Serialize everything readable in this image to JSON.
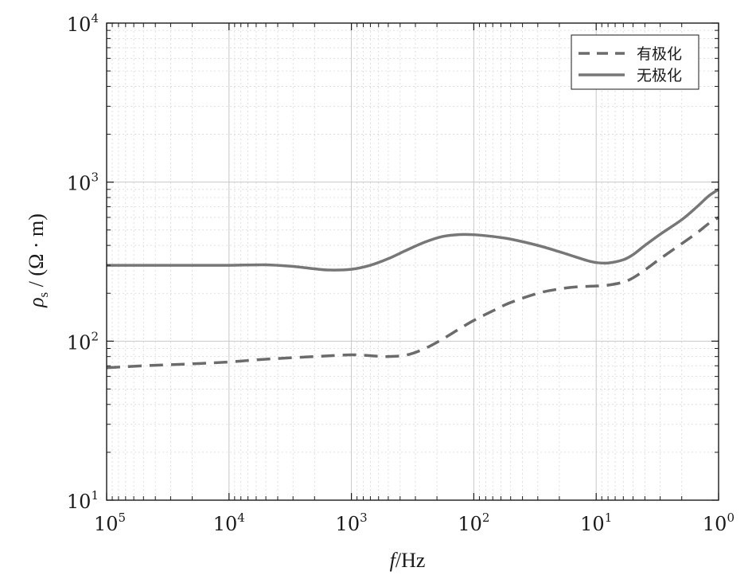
{
  "chart_data": {
    "type": "line",
    "x_scale": "log",
    "y_scale": "log",
    "x_reversed": true,
    "xlim": [
      100000,
      1
    ],
    "ylim": [
      10,
      10000
    ],
    "grid": true,
    "legend_position": "top-right",
    "xlabel_italic": "f",
    "xlabel_unit": "/Hz",
    "ylabel_symbol": "ρ",
    "ylabel_subscript": "s",
    "ylabel_unit": " / (Ω · m)",
    "x_ticks": [
      {
        "base": "10",
        "exp": "5",
        "value": 100000
      },
      {
        "base": "10",
        "exp": "4",
        "value": 10000
      },
      {
        "base": "10",
        "exp": "3",
        "value": 1000
      },
      {
        "base": "10",
        "exp": "2",
        "value": 100
      },
      {
        "base": "10",
        "exp": "1",
        "value": 10
      },
      {
        "base": "10",
        "exp": "0",
        "value": 1
      }
    ],
    "y_ticks": [
      {
        "base": "10",
        "exp": "1",
        "value": 10
      },
      {
        "base": "10",
        "exp": "2",
        "value": 100
      },
      {
        "base": "10",
        "exp": "3",
        "value": 1000
      },
      {
        "base": "10",
        "exp": "4",
        "value": 10000
      }
    ],
    "series": [
      {
        "name": "有极化",
        "style": "dashed",
        "color": "#6b6b6b",
        "x": [
          100000,
          50000,
          20000,
          10000,
          5000,
          2000,
          1000,
          700,
          500,
          350,
          250,
          180,
          130,
          100,
          70,
          50,
          30,
          20,
          15,
          12,
          10,
          8,
          6,
          5,
          4,
          3,
          2,
          1.5,
          1.2,
          1
        ],
        "y": [
          68,
          70,
          72,
          74,
          77,
          80,
          82,
          81,
          80,
          82,
          90,
          103,
          120,
          135,
          155,
          175,
          200,
          213,
          219,
          221,
          222,
          225,
          235,
          250,
          280,
          330,
          410,
          480,
          550,
          600
        ]
      },
      {
        "name": "无极化",
        "style": "solid",
        "color": "#777777",
        "x": [
          100000,
          50000,
          20000,
          10000,
          5000,
          3000,
          2000,
          1500,
          1000,
          700,
          500,
          350,
          250,
          180,
          130,
          100,
          70,
          50,
          30,
          20,
          15,
          12,
          10,
          8,
          6,
          5,
          4,
          3,
          2,
          1.5,
          1.2,
          1
        ],
        "y": [
          300,
          300,
          300,
          300,
          302,
          295,
          285,
          280,
          283,
          300,
          330,
          375,
          420,
          455,
          468,
          467,
          455,
          438,
          400,
          365,
          340,
          322,
          312,
          310,
          325,
          350,
          400,
          470,
          580,
          700,
          820,
          900
        ]
      }
    ]
  }
}
